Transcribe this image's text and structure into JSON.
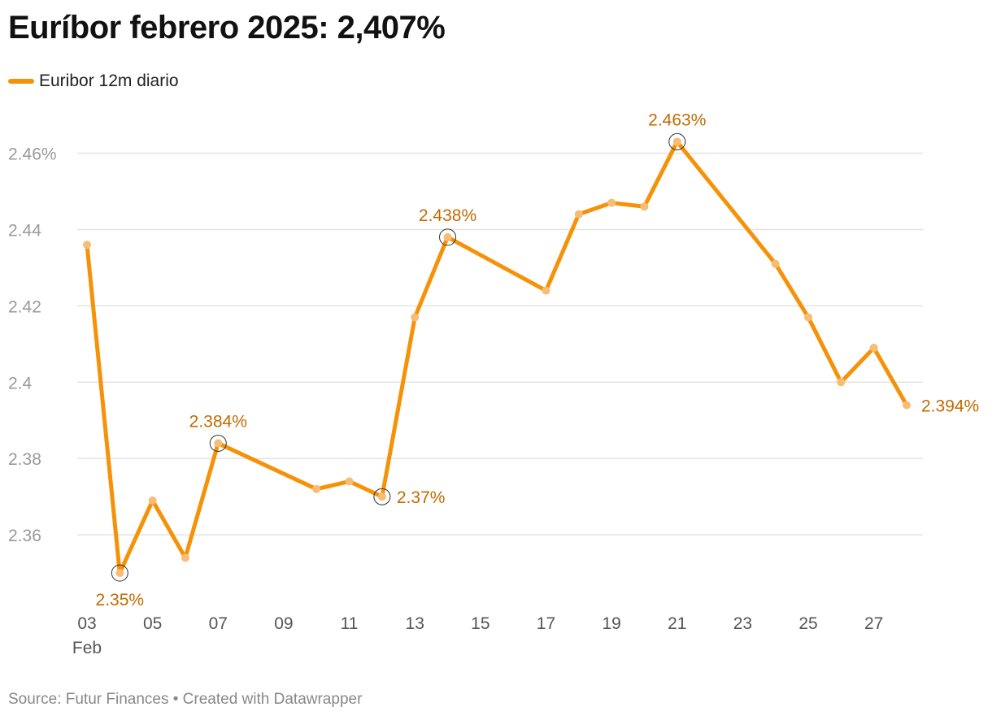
{
  "title": "Euríbor febrero 2025: 2,407%",
  "footer": "Source: Futur Finances • Created with Datawrapper",
  "colors": {
    "line": "#f59208",
    "marker": "#f7bd75",
    "annotation": "#c36a00",
    "grid": "#e3e3e3"
  },
  "chart_data": {
    "type": "line",
    "title": "Euríbor febrero 2025: 2,407%",
    "xlabel": "",
    "ylabel": "",
    "xlim": [
      3,
      28
    ],
    "ylim": [
      2.343,
      2.4665
    ],
    "grid": true,
    "legend_position": "top-left",
    "legend": [
      "Euribor 12m diario"
    ],
    "y_ticks": [
      {
        "value": 2.36,
        "label": "2.36"
      },
      {
        "value": 2.38,
        "label": "2.38"
      },
      {
        "value": 2.4,
        "label": "2.4"
      },
      {
        "value": 2.42,
        "label": "2.42"
      },
      {
        "value": 2.44,
        "label": "2.44"
      },
      {
        "value": 2.46,
        "label": "2.46%"
      }
    ],
    "x_ticks": [
      {
        "value": 3,
        "label": "03",
        "sublabel": "Feb"
      },
      {
        "value": 5,
        "label": "05"
      },
      {
        "value": 7,
        "label": "07"
      },
      {
        "value": 9,
        "label": "09"
      },
      {
        "value": 11,
        "label": "11"
      },
      {
        "value": 13,
        "label": "13"
      },
      {
        "value": 15,
        "label": "15"
      },
      {
        "value": 17,
        "label": "17"
      },
      {
        "value": 19,
        "label": "19"
      },
      {
        "value": 21,
        "label": "21"
      },
      {
        "value": 23,
        "label": "23"
      },
      {
        "value": 25,
        "label": "25"
      },
      {
        "value": 27,
        "label": "27"
      }
    ],
    "series": [
      {
        "name": "Euribor 12m diario",
        "x": [
          3,
          4,
          5,
          6,
          7,
          10,
          11,
          12,
          13,
          14,
          17,
          18,
          19,
          20,
          21,
          24,
          25,
          26,
          27,
          28
        ],
        "values": [
          2.436,
          2.35,
          2.369,
          2.354,
          2.384,
          2.372,
          2.374,
          2.37,
          2.417,
          2.438,
          2.424,
          2.444,
          2.447,
          2.446,
          2.463,
          2.431,
          2.417,
          2.4,
          2.409,
          2.394
        ]
      }
    ],
    "annotations": [
      {
        "x": 4,
        "y": 2.35,
        "label": "2.35%",
        "place": "below",
        "circle": true
      },
      {
        "x": 7,
        "y": 2.384,
        "label": "2.384%",
        "place": "above",
        "circle": true
      },
      {
        "x": 12,
        "y": 2.37,
        "label": "2.37%",
        "place": "right",
        "circle": true
      },
      {
        "x": 14,
        "y": 2.438,
        "label": "2.438%",
        "place": "above",
        "circle": true
      },
      {
        "x": 21,
        "y": 2.463,
        "label": "2.463%",
        "place": "above",
        "circle": true
      },
      {
        "x": 28,
        "y": 2.394,
        "label": "2.394%",
        "place": "right",
        "circle": false
      }
    ]
  }
}
